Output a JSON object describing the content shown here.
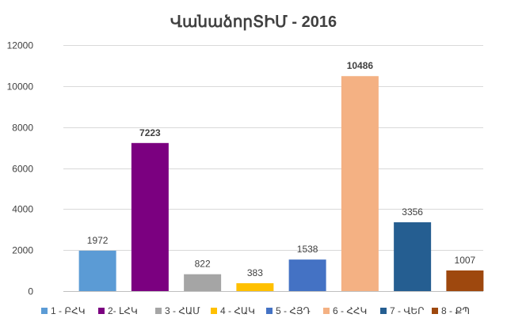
{
  "chart_data": {
    "type": "bar",
    "title": "ՎանաձորՏԻՄ - 2016",
    "xlabel": "",
    "ylabel": "",
    "ylim": [
      0,
      12000
    ],
    "yticks": [
      0,
      2000,
      4000,
      6000,
      8000,
      10000,
      12000
    ],
    "grid": true,
    "legend_position": "bottom",
    "categories": [
      "1 - ԲՀԿ",
      "2- ԼՀԿ",
      "3 - ՀԱՄ",
      "4 - ՀԱԿ",
      "5 - ՀՅԴ",
      "6 - ՀՀԿ",
      "7 - ՎԵՐ",
      "8 - ՔՊ"
    ],
    "values": [
      1972,
      7223,
      822,
      383,
      1538,
      10486,
      3356,
      1007
    ],
    "colors": [
      "#5b9bd5",
      "#7b0080",
      "#a5a5a5",
      "#ffc000",
      "#4472c4",
      "#f4b183",
      "#255e91",
      "#9e480e"
    ],
    "bold_labels": [
      false,
      true,
      false,
      false,
      false,
      true,
      false,
      false
    ]
  }
}
